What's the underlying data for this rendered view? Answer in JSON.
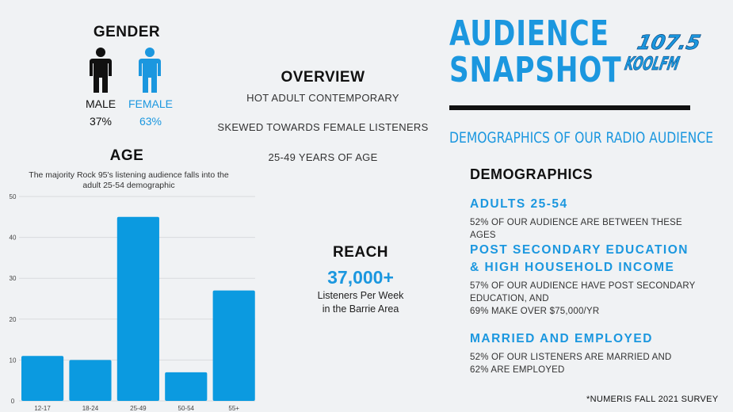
{
  "gender": {
    "title": "GENDER",
    "male_label": "MALE",
    "female_label": "FEMALE",
    "male_pct": "37%",
    "female_pct": "63%",
    "colors": {
      "male": "#111111",
      "female": "#1b97df"
    }
  },
  "age": {
    "title": "AGE",
    "caption": "The majority Rock 95's listening audience falls into the adult 25-54 demographic"
  },
  "chart_data": {
    "type": "bar",
    "categories": [
      "12-17",
      "18-24",
      "25-49",
      "50-54",
      "55+"
    ],
    "values": [
      11,
      10,
      45,
      7,
      27
    ],
    "ylim": [
      0,
      50
    ],
    "yticks": [
      0,
      10,
      20,
      30,
      40,
      50
    ],
    "grid": true,
    "color": "#0b9ae0"
  },
  "overview": {
    "title": "OVERVIEW",
    "items": [
      "HOT ADULT CONTEMPORARY",
      "SKEWED TOWARDS FEMALE LISTENERS",
      "25-49 YEARS OF AGE"
    ]
  },
  "reach": {
    "title": "REACH",
    "value": "37,000+",
    "desc_line1": "Listeners Per Week",
    "desc_line2": "in the Barrie Area"
  },
  "header": {
    "title_line1": "AUDIENCE",
    "title_line2": "SNAPSHOT",
    "logo_number": "107.5",
    "logo_name": "KOOLFM",
    "tagline": "DEMOGRAPHICS OF OUR RADIO AUDIENCE"
  },
  "demographics": {
    "title": "DEMOGRAPHICS",
    "s1_title": "ADULTS 25-54",
    "s1_text": "52% OF OUR AUDIENCE ARE BETWEEN THESE AGES",
    "s2_title_line1": "POST SECONDARY EDUCATION",
    "s2_title_line2": "& HIGH HOUSEHOLD INCOME",
    "s2_text_line1": "57% OF OUR AUDIENCE HAVE POST SECONDARY",
    "s2_text_line2": "EDUCATION, AND",
    "s2_text_line3": "69% MAKE OVER $75,000/YR",
    "s3_title": "MARRIED AND EMPLOYED",
    "s3_text": "52% OF OUR LISTENERS ARE MARRIED AND 62% ARE EMPLOYED"
  },
  "footnote": "*NUMERIS FALL 2021 SURVEY"
}
